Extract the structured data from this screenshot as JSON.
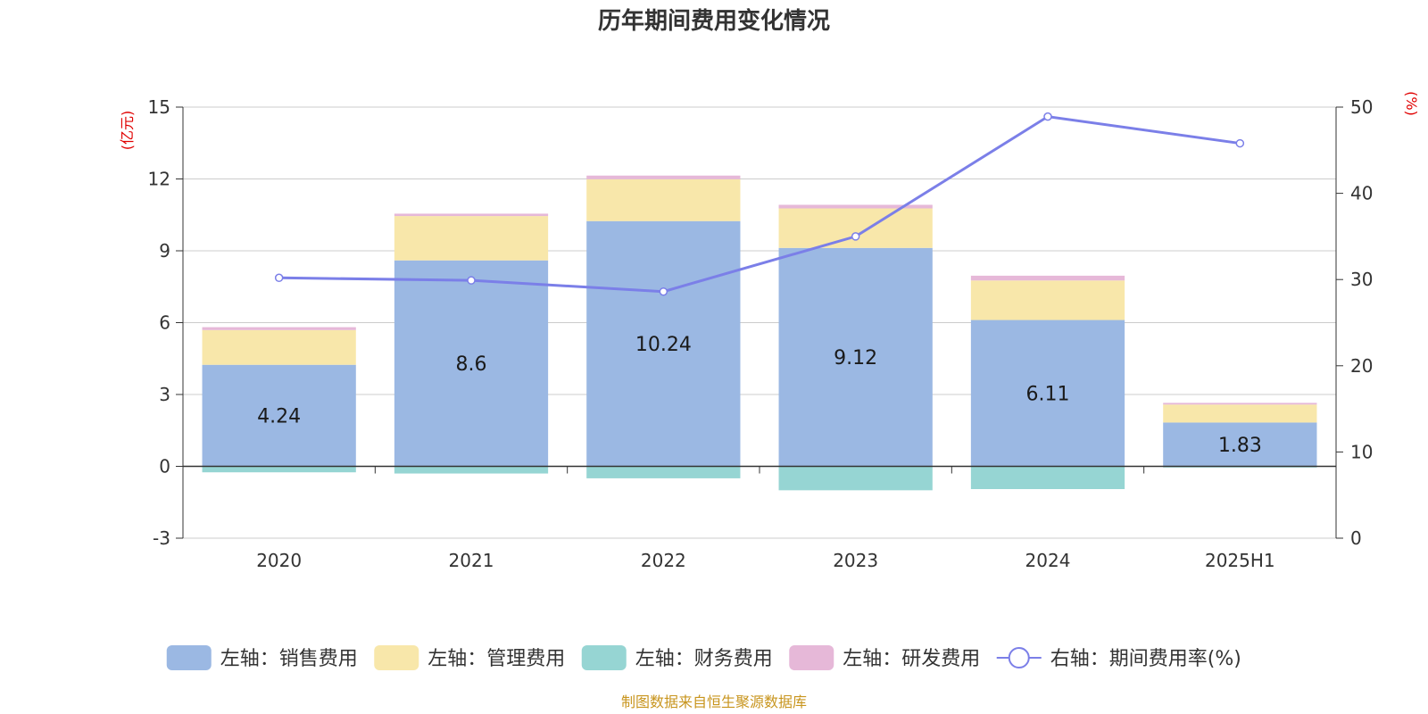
{
  "chart_data": {
    "type": "bar",
    "title": "历年期间费用变化情况",
    "categories": [
      "2020",
      "2021",
      "2022",
      "2023",
      "2024",
      "2025H1"
    ],
    "left_axis": {
      "unit": "(亿元)",
      "min": -3,
      "max": 15,
      "ticks": [
        -3,
        0,
        3,
        6,
        9,
        12,
        15
      ]
    },
    "right_axis": {
      "unit": "(%)",
      "min": 0,
      "max": 50,
      "ticks": [
        0,
        10,
        20,
        30,
        40,
        50
      ]
    },
    "series": [
      {
        "name": "左轴：销售费用",
        "axis": "left",
        "stack": true,
        "color": "#9bb8e3",
        "values": [
          4.24,
          8.6,
          10.24,
          9.12,
          6.11,
          1.83
        ],
        "labels": [
          "4.24",
          "8.6",
          "10.24",
          "9.12",
          "6.11",
          "1.83"
        ]
      },
      {
        "name": "左轴：管理费用",
        "axis": "left",
        "stack": true,
        "color": "#f8e7aa",
        "values": [
          1.45,
          1.85,
          1.75,
          1.65,
          1.65,
          0.75
        ]
      },
      {
        "name": "左轴：财务费用",
        "axis": "left",
        "stack": true,
        "color": "#96d5d3",
        "values": [
          -0.25,
          -0.3,
          -0.5,
          -1.0,
          -0.95,
          -0.05
        ]
      },
      {
        "name": "左轴：研发费用",
        "axis": "left",
        "stack": true,
        "color": "#e6b8d8",
        "values": [
          0.12,
          0.1,
          0.15,
          0.15,
          0.2,
          0.07
        ]
      },
      {
        "name": "右轴：期间费用率(%)",
        "axis": "right",
        "type": "line",
        "color": "#7b7fe8",
        "values": [
          30.2,
          29.9,
          28.6,
          35.0,
          48.9,
          45.8
        ]
      }
    ],
    "legend_position": "bottom",
    "grid": true
  },
  "footer": {
    "source": "制图数据来自恒生聚源数据库"
  }
}
